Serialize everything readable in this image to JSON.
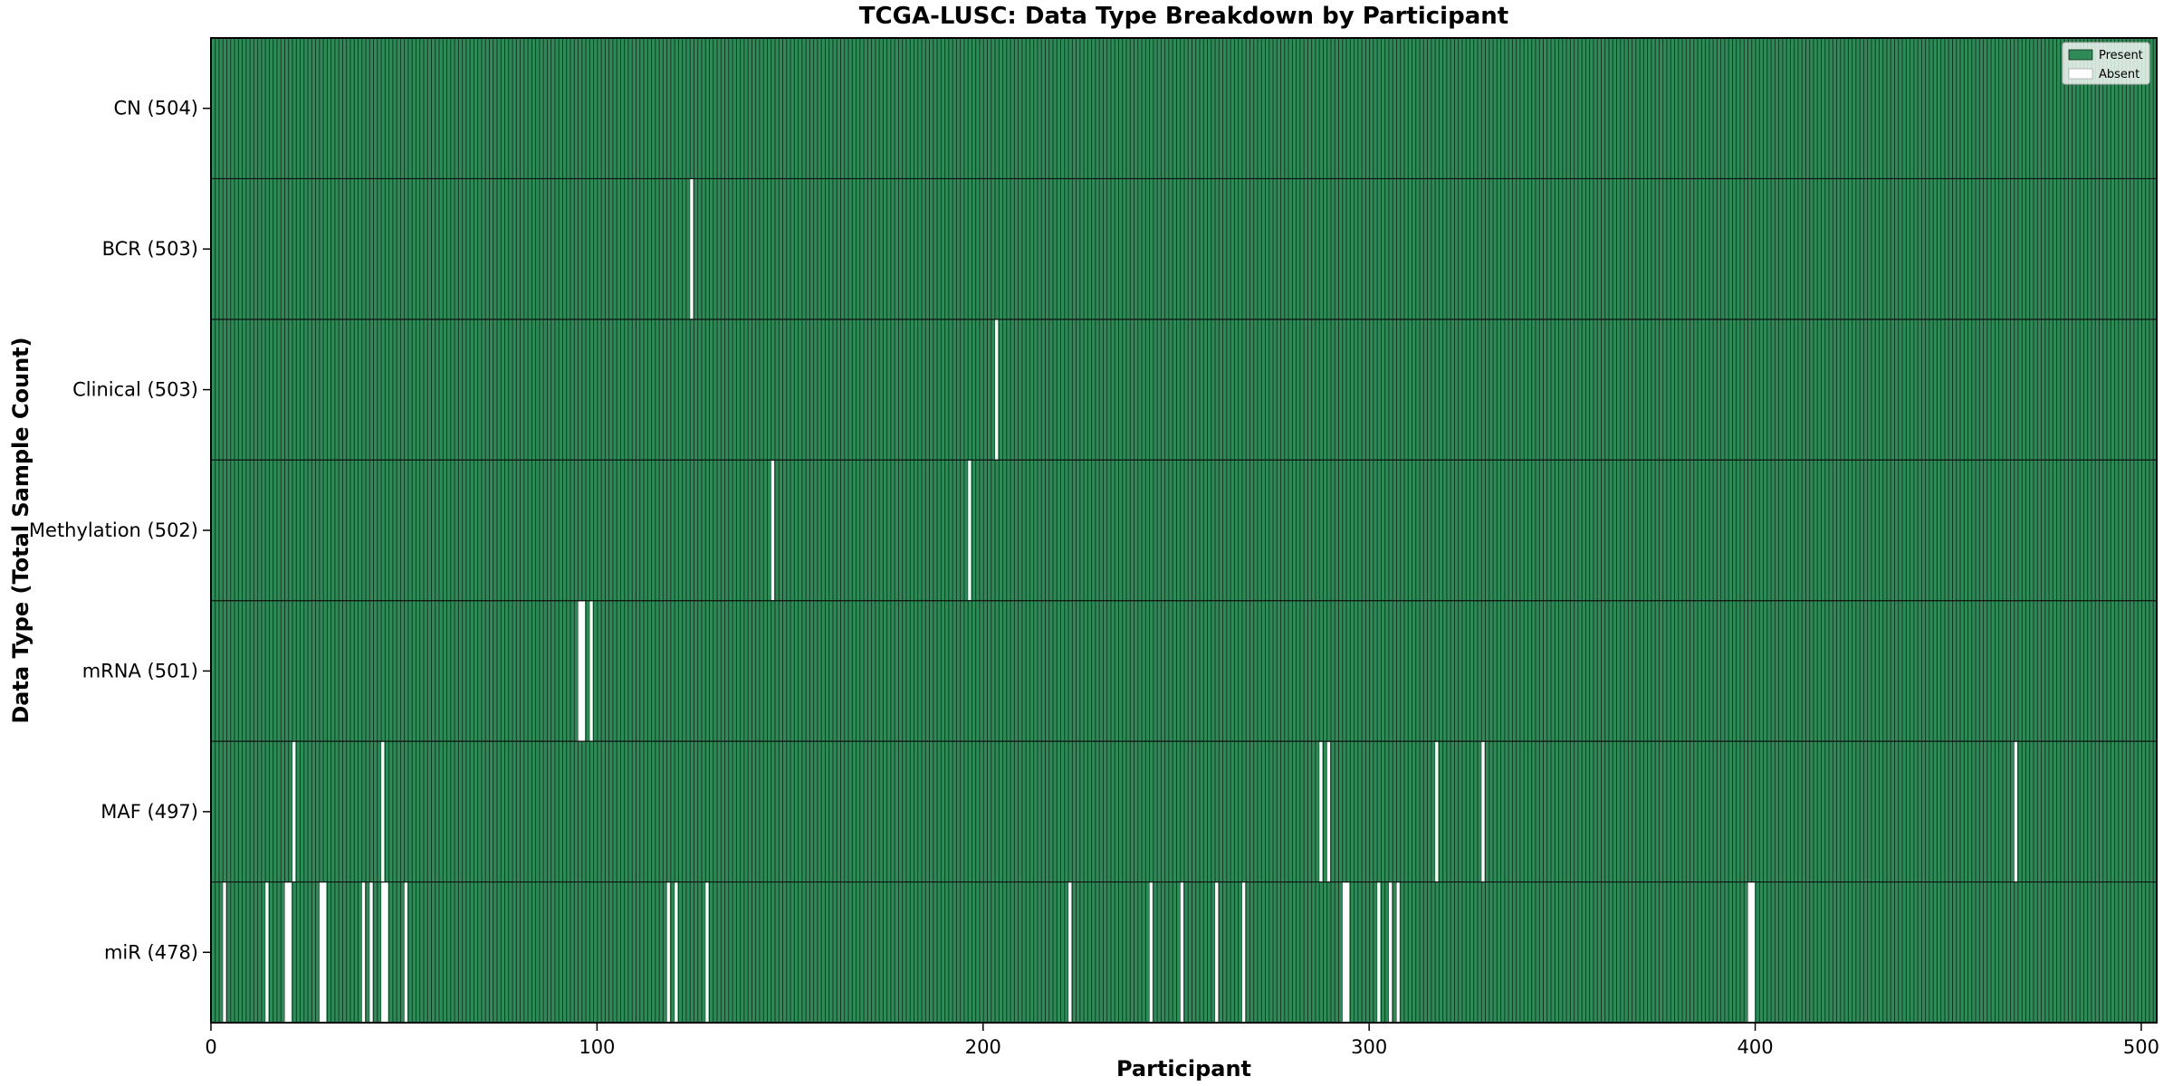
{
  "chart_data": {
    "type": "heatmap",
    "title": "TCGA-LUSC: Data Type Breakdown by Participant",
    "xlabel": "Participant",
    "ylabel": "Data Type (Total Sample Count)",
    "x_ticks": [
      0,
      100,
      200,
      300,
      400,
      500
    ],
    "x_range": [
      0,
      504
    ],
    "n_participants": 504,
    "grid": false,
    "colors": {
      "present": "#2e8b57",
      "bar_edge": "#11301f",
      "absent": "#ffffff",
      "border": "#000000",
      "text": "#000000"
    },
    "legend": {
      "position": "upper right",
      "entries": [
        {
          "label": "Present",
          "color": "#2e8b57"
        },
        {
          "label": "Absent",
          "color": "#ffffff"
        }
      ]
    },
    "rows": [
      {
        "label": "CN",
        "total": 504,
        "display": "CN (504)",
        "missing": []
      },
      {
        "label": "BCR",
        "total": 503,
        "display": "BCR (503)",
        "missing": [
          124
        ]
      },
      {
        "label": "Clinical",
        "total": 503,
        "display": "Clinical (503)",
        "missing": [
          203
        ]
      },
      {
        "label": "Methylation",
        "total": 502,
        "display": "Methylation (502)",
        "missing": [
          145,
          196
        ]
      },
      {
        "label": "mRNA",
        "total": 501,
        "display": "mRNA (501)",
        "missing": [
          95,
          96,
          98
        ]
      },
      {
        "label": "MAF",
        "total": 497,
        "display": "MAF (497)",
        "missing": [
          21,
          44,
          287,
          289,
          317,
          329,
          467
        ]
      },
      {
        "label": "miR",
        "total": 478,
        "display": "miR (478)",
        "missing": [
          3,
          14,
          19,
          20,
          28,
          29,
          39,
          41,
          44,
          45,
          50,
          118,
          120,
          128,
          222,
          243,
          251,
          260,
          267,
          293,
          294,
          302,
          305,
          307,
          398,
          399
        ]
      }
    ]
  }
}
